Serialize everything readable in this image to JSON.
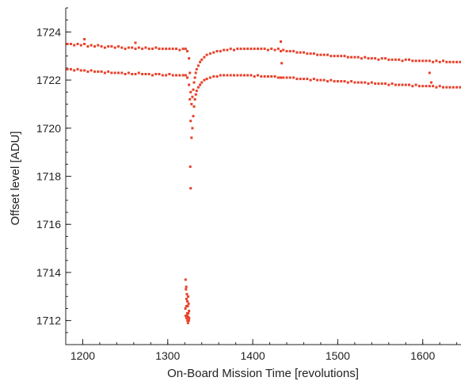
{
  "chart_data": {
    "type": "scatter",
    "title": "",
    "xlabel": "On-Board Mission Time [revolutions]",
    "ylabel": "Offset level [ADU]",
    "xlim": [
      1180,
      1645
    ],
    "ylim": [
      1711,
      1725
    ],
    "x_major_ticks": [
      1200,
      1300,
      1400,
      1500,
      1600
    ],
    "x_major_tick_labels": [
      "1200",
      "1300",
      "1400",
      "1500",
      "1600"
    ],
    "y_major_ticks": [
      1712,
      1714,
      1716,
      1718,
      1720,
      1722,
      1724
    ],
    "y_major_tick_labels": [
      "1712",
      "1714",
      "1716",
      "1718",
      "1720",
      "1722",
      "1724"
    ],
    "x_minor_step": 20,
    "y_minor_step": 0.5,
    "grid": false,
    "legend": "none",
    "marker_color": "#e8412a",
    "series": [
      {
        "x": [
          1182,
          1186,
          1190,
          1194,
          1198,
          1202,
          1206,
          1210,
          1214,
          1218,
          1222,
          1226,
          1230,
          1234,
          1238,
          1242,
          1246,
          1250,
          1254,
          1258,
          1262,
          1266,
          1270,
          1274,
          1278,
          1282,
          1286,
          1290,
          1294,
          1298,
          1302,
          1306,
          1310,
          1314,
          1318,
          1321,
          1323,
          1325,
          1326,
          1327,
          1328,
          1329,
          1330,
          1331,
          1332,
          1333,
          1334,
          1336,
          1338,
          1340,
          1343,
          1346,
          1350,
          1354,
          1358,
          1362,
          1366,
          1370,
          1374,
          1378,
          1382,
          1386,
          1390,
          1394,
          1398,
          1402,
          1406,
          1410,
          1414,
          1418,
          1422,
          1426,
          1430,
          1433,
          1436,
          1440,
          1444,
          1448,
          1452,
          1456,
          1460,
          1464,
          1468,
          1472,
          1476,
          1480,
          1484,
          1488,
          1492,
          1496,
          1500,
          1504,
          1508,
          1512,
          1516,
          1520,
          1524,
          1528,
          1532,
          1536,
          1540,
          1544,
          1548,
          1552,
          1556,
          1560,
          1564,
          1568,
          1572,
          1576,
          1580,
          1584,
          1588,
          1592,
          1596,
          1600,
          1604,
          1608,
          1612,
          1616,
          1620,
          1624,
          1628,
          1632,
          1636,
          1640,
          1644
        ],
        "y": [
          1723.5,
          1723.5,
          1723.45,
          1723.5,
          1723.45,
          1723.5,
          1723.4,
          1723.45,
          1723.4,
          1723.45,
          1723.4,
          1723.35,
          1723.4,
          1723.4,
          1723.35,
          1723.4,
          1723.35,
          1723.3,
          1723.35,
          1723.35,
          1723.3,
          1723.35,
          1723.3,
          1723.35,
          1723.3,
          1723.3,
          1723.35,
          1723.3,
          1723.3,
          1723.3,
          1723.3,
          1723.3,
          1723.3,
          1723.25,
          1723.3,
          1723.3,
          1723.2,
          1722.9,
          1722.3,
          1721.5,
          1721.0,
          1721.3,
          1721.6,
          1721.9,
          1722.1,
          1722.3,
          1722.45,
          1722.6,
          1722.75,
          1722.85,
          1722.95,
          1723.05,
          1723.1,
          1723.15,
          1723.2,
          1723.2,
          1723.25,
          1723.25,
          1723.3,
          1723.25,
          1723.3,
          1723.3,
          1723.3,
          1723.3,
          1723.3,
          1723.3,
          1723.3,
          1723.3,
          1723.3,
          1723.25,
          1723.3,
          1723.25,
          1723.3,
          1723.2,
          1723.25,
          1723.2,
          1723.2,
          1723.2,
          1723.15,
          1723.15,
          1723.15,
          1723.1,
          1723.1,
          1723.1,
          1723.05,
          1723.05,
          1723.05,
          1723.05,
          1723.0,
          1723.0,
          1723.0,
          1723.0,
          1723.0,
          1722.95,
          1722.95,
          1722.95,
          1722.95,
          1722.9,
          1722.95,
          1722.9,
          1722.9,
          1722.9,
          1722.85,
          1722.9,
          1722.9,
          1722.85,
          1722.85,
          1722.85,
          1722.85,
          1722.8,
          1722.85,
          1722.85,
          1722.8,
          1722.8,
          1722.8,
          1722.8,
          1722.8,
          1722.8,
          1722.75,
          1722.8,
          1722.75,
          1722.8,
          1722.75,
          1722.75,
          1722.75,
          1722.75,
          1722.75
        ]
      },
      {
        "x": [
          1182,
          1186,
          1190,
          1194,
          1198,
          1202,
          1206,
          1210,
          1214,
          1218,
          1222,
          1226,
          1230,
          1234,
          1238,
          1242,
          1246,
          1250,
          1254,
          1258,
          1262,
          1266,
          1270,
          1274,
          1278,
          1282,
          1286,
          1290,
          1294,
          1298,
          1302,
          1306,
          1310,
          1314,
          1318,
          1321,
          1323,
          1325,
          1326,
          1327,
          1328,
          1329,
          1330,
          1331,
          1332,
          1333,
          1334,
          1336,
          1338,
          1340,
          1343,
          1346,
          1350,
          1354,
          1358,
          1362,
          1366,
          1370,
          1374,
          1378,
          1382,
          1386,
          1390,
          1394,
          1398,
          1402,
          1406,
          1410,
          1414,
          1418,
          1422,
          1426,
          1430,
          1433,
          1436,
          1440,
          1444,
          1448,
          1452,
          1456,
          1460,
          1464,
          1468,
          1472,
          1476,
          1480,
          1484,
          1488,
          1492,
          1496,
          1500,
          1504,
          1508,
          1512,
          1516,
          1520,
          1524,
          1528,
          1532,
          1536,
          1540,
          1544,
          1548,
          1552,
          1556,
          1560,
          1564,
          1568,
          1572,
          1576,
          1580,
          1584,
          1588,
          1592,
          1596,
          1600,
          1604,
          1608,
          1612,
          1616,
          1620,
          1624,
          1628,
          1632,
          1636,
          1640,
          1644
        ],
        "y": [
          1722.45,
          1722.45,
          1722.4,
          1722.45,
          1722.4,
          1722.4,
          1722.35,
          1722.4,
          1722.35,
          1722.35,
          1722.35,
          1722.3,
          1722.35,
          1722.3,
          1722.3,
          1722.3,
          1722.3,
          1722.25,
          1722.3,
          1722.25,
          1722.25,
          1722.3,
          1722.25,
          1722.25,
          1722.25,
          1722.2,
          1722.25,
          1722.25,
          1722.2,
          1722.2,
          1722.25,
          1722.2,
          1722.2,
          1722.2,
          1722.2,
          1722.2,
          1722.1,
          1721.8,
          1721.2,
          1720.3,
          1719.6,
          1720.0,
          1720.5,
          1720.9,
          1721.2,
          1721.4,
          1721.55,
          1721.7,
          1721.8,
          1721.9,
          1722.0,
          1722.05,
          1722.1,
          1722.15,
          1722.15,
          1722.2,
          1722.2,
          1722.2,
          1722.2,
          1722.2,
          1722.2,
          1722.2,
          1722.2,
          1722.2,
          1722.2,
          1722.15,
          1722.2,
          1722.15,
          1722.15,
          1722.15,
          1722.15,
          1722.15,
          1722.1,
          1722.1,
          1722.1,
          1722.1,
          1722.1,
          1722.1,
          1722.05,
          1722.05,
          1722.05,
          1722.05,
          1722.0,
          1722.05,
          1722.0,
          1722.0,
          1722.0,
          1721.95,
          1722.0,
          1721.95,
          1721.95,
          1721.95,
          1721.95,
          1721.9,
          1721.95,
          1721.9,
          1721.9,
          1721.9,
          1721.9,
          1721.85,
          1721.9,
          1721.85,
          1721.85,
          1721.85,
          1721.85,
          1721.8,
          1721.85,
          1721.8,
          1721.8,
          1721.8,
          1721.8,
          1721.8,
          1721.75,
          1721.8,
          1721.75,
          1721.75,
          1721.75,
          1721.75,
          1721.75,
          1721.7,
          1721.75,
          1721.7,
          1721.7,
          1721.7,
          1721.7,
          1721.7,
          1721.7
        ]
      },
      {
        "x": [
          1202,
          1262,
          1326.5,
          1327.0,
          1321.0,
          1321.5,
          1322.0,
          1322.5,
          1323.0,
          1323.5,
          1324.0,
          1324.5,
          1325.0,
          1321.2,
          1322.2,
          1323.2,
          1324.2,
          1325.2,
          1320.8,
          1321.8,
          1322.8,
          1323.8,
          1324.8,
          1322.0,
          1323.0,
          1324.0,
          1433,
          1434,
          1608,
          1610
        ],
        "y": [
          1723.7,
          1723.55,
          1718.4,
          1717.5,
          1713.7,
          1713.3,
          1712.9,
          1713.1,
          1712.8,
          1712.6,
          1713.0,
          1712.7,
          1712.4,
          1712.2,
          1712.1,
          1712.0,
          1712.3,
          1712.1,
          1712.5,
          1713.4,
          1712.2,
          1711.9,
          1712.0,
          1712.6,
          1712.3,
          1712.15,
          1723.6,
          1722.7,
          1722.3,
          1721.9
        ]
      }
    ]
  }
}
